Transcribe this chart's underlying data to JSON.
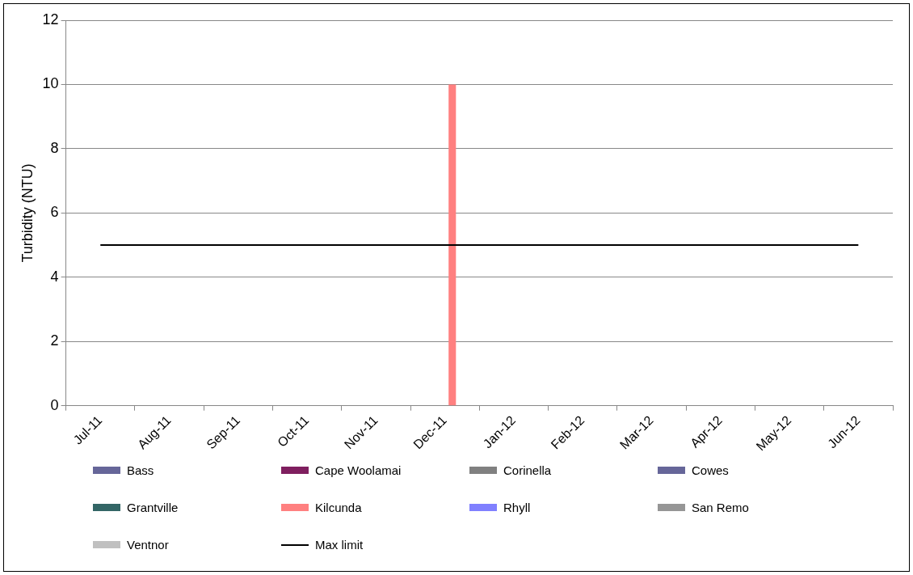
{
  "chart_data": {
    "type": "bar",
    "ylabel": "Turbidity (NTU)",
    "categories": [
      "Jul-11",
      "Aug-11",
      "Sep-11",
      "Oct-11",
      "Nov-11",
      "Dec-11",
      "Jan-12",
      "Feb-12",
      "Mar-12",
      "Apr-12",
      "May-12",
      "Jun-12"
    ],
    "series": [
      {
        "name": "Bass",
        "color": "#666699",
        "values": [
          null,
          null,
          null,
          null,
          null,
          null,
          null,
          null,
          null,
          null,
          null,
          null
        ]
      },
      {
        "name": "Cape Woolamai",
        "color": "#7f1f5f",
        "values": [
          null,
          null,
          null,
          null,
          null,
          null,
          null,
          null,
          null,
          null,
          null,
          null
        ]
      },
      {
        "name": "Corinella",
        "color": "#808080",
        "values": [
          null,
          null,
          null,
          null,
          null,
          null,
          null,
          null,
          null,
          null,
          null,
          null
        ]
      },
      {
        "name": "Cowes",
        "color": "#666699",
        "values": [
          null,
          null,
          null,
          null,
          null,
          null,
          null,
          null,
          null,
          null,
          null,
          null
        ]
      },
      {
        "name": "Grantville",
        "color": "#336666",
        "values": [
          null,
          null,
          null,
          null,
          null,
          null,
          null,
          null,
          null,
          null,
          null,
          null
        ]
      },
      {
        "name": "Kilcunda",
        "color": "#ff8080",
        "values": [
          null,
          null,
          null,
          null,
          null,
          10,
          null,
          null,
          null,
          null,
          null,
          null
        ]
      },
      {
        "name": "Rhyll",
        "color": "#8080ff",
        "values": [
          null,
          null,
          null,
          null,
          null,
          null,
          null,
          null,
          null,
          null,
          null,
          null
        ]
      },
      {
        "name": "San Remo",
        "color": "#969696",
        "values": [
          null,
          null,
          null,
          null,
          null,
          null,
          null,
          null,
          null,
          null,
          null,
          null
        ]
      },
      {
        "name": "Ventnor",
        "color": "#c0c0c0",
        "values": [
          null,
          null,
          null,
          null,
          null,
          null,
          null,
          null,
          null,
          null,
          null,
          null
        ]
      },
      {
        "name": "Max limit",
        "type": "line",
        "color": "#000000",
        "values": [
          5,
          5,
          5,
          5,
          5,
          5,
          5,
          5,
          5,
          5,
          5,
          5
        ]
      }
    ],
    "ylim": [
      0,
      12
    ],
    "yticks": [
      0,
      2,
      4,
      6,
      8,
      10,
      12
    ],
    "grid": "y",
    "legend": "bottom",
    "marker": "none"
  }
}
